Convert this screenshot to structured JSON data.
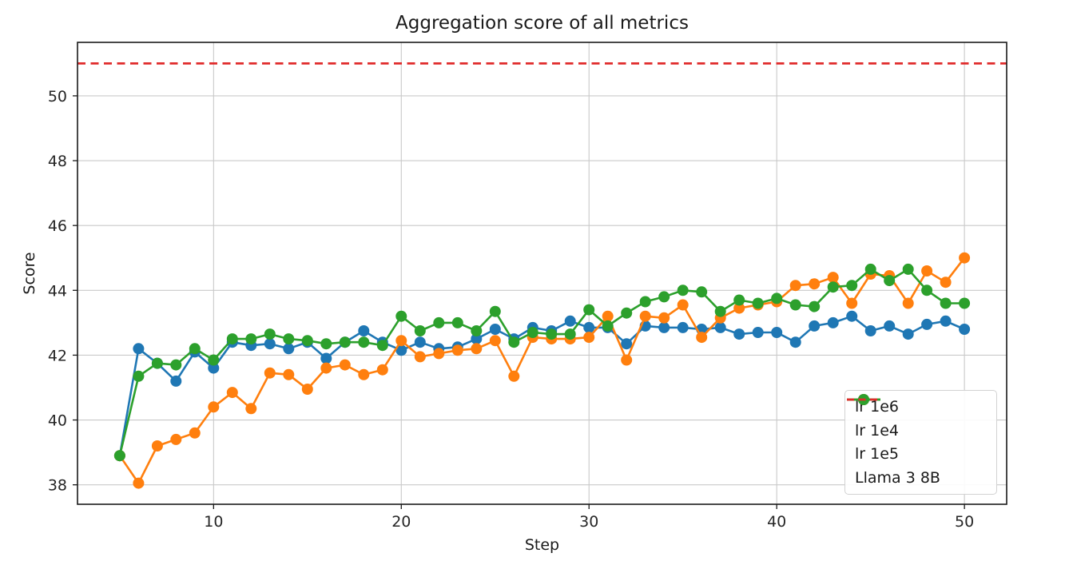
{
  "window": {
    "background": "#ffffff"
  },
  "chart_data": {
    "type": "line",
    "title": "Aggregation score of all metrics",
    "xlabel": "Step",
    "ylabel": "Score",
    "grid": true,
    "x_ticks": [
      10,
      20,
      30,
      40,
      50
    ],
    "y_ticks": [
      38,
      40,
      42,
      44,
      46,
      48,
      50
    ],
    "xlim": [
      2.75,
      52.25
    ],
    "ylim": [
      37.4,
      51.65
    ],
    "x": [
      5,
      6,
      7,
      8,
      9,
      10,
      11,
      12,
      13,
      14,
      15,
      16,
      17,
      18,
      19,
      20,
      21,
      22,
      23,
      24,
      25,
      26,
      27,
      28,
      29,
      30,
      31,
      32,
      33,
      34,
      35,
      36,
      37,
      38,
      39,
      40,
      41,
      42,
      43,
      44,
      45,
      46,
      47,
      48,
      49,
      50
    ],
    "series": [
      {
        "name": "lr 1e6",
        "color": "#1f77b4",
        "line_style": "solid",
        "marker": "circle",
        "values": [
          38.9,
          42.2,
          41.75,
          41.2,
          42.1,
          41.6,
          42.4,
          42.3,
          42.35,
          42.2,
          42.4,
          41.9,
          42.4,
          42.75,
          42.4,
          42.15,
          42.4,
          42.2,
          42.25,
          42.5,
          42.8,
          42.5,
          42.85,
          42.75,
          43.05,
          42.85,
          42.85,
          42.35,
          42.9,
          42.85,
          42.85,
          42.8,
          42.85,
          42.65,
          42.7,
          42.7,
          42.4,
          42.9,
          43.0,
          43.2,
          42.75,
          42.9,
          42.65,
          42.95,
          43.05,
          42.8
        ]
      },
      {
        "name": "lr 1e4",
        "color": "#ff7f0e",
        "line_style": "solid",
        "marker": "circle",
        "values": [
          38.9,
          38.05,
          39.2,
          39.4,
          39.6,
          40.4,
          40.85,
          40.35,
          41.45,
          41.4,
          40.95,
          41.6,
          41.7,
          41.4,
          41.55,
          42.45,
          41.95,
          42.05,
          42.15,
          42.2,
          42.45,
          41.35,
          42.55,
          42.5,
          42.5,
          42.55,
          43.2,
          41.85,
          43.2,
          43.15,
          43.55,
          42.55,
          43.15,
          43.45,
          43.55,
          43.65,
          44.15,
          44.2,
          44.4,
          43.6,
          44.5,
          44.45,
          43.6,
          44.6,
          44.25,
          45.0
        ]
      },
      {
        "name": "lr 1e5",
        "color": "#2ca02c",
        "line_style": "solid",
        "marker": "circle",
        "values": [
          38.9,
          41.35,
          41.75,
          41.7,
          42.2,
          41.85,
          42.5,
          42.5,
          42.65,
          42.5,
          42.45,
          42.35,
          42.4,
          42.4,
          42.3,
          43.2,
          42.75,
          43.0,
          43.0,
          42.75,
          43.35,
          42.4,
          42.7,
          42.65,
          42.65,
          43.4,
          42.9,
          43.3,
          43.65,
          43.8,
          44.0,
          43.95,
          43.35,
          43.7,
          43.6,
          43.75,
          43.55,
          43.5,
          44.1,
          44.15,
          44.65,
          44.3,
          44.65,
          44.0,
          43.6,
          43.6
        ]
      }
    ],
    "reference_line": {
      "name": "Llama 3 8B",
      "value": 51.0,
      "color": "#e02a2a",
      "line_style": "dashed"
    },
    "legend": {
      "position": "lower right",
      "entries": [
        "lr 1e6",
        "lr 1e4",
        "lr 1e5",
        "Llama 3 8B"
      ]
    },
    "colors": {
      "grid": "#c9c9c9",
      "spine": "#1a1a1a",
      "text": "#262626"
    }
  }
}
